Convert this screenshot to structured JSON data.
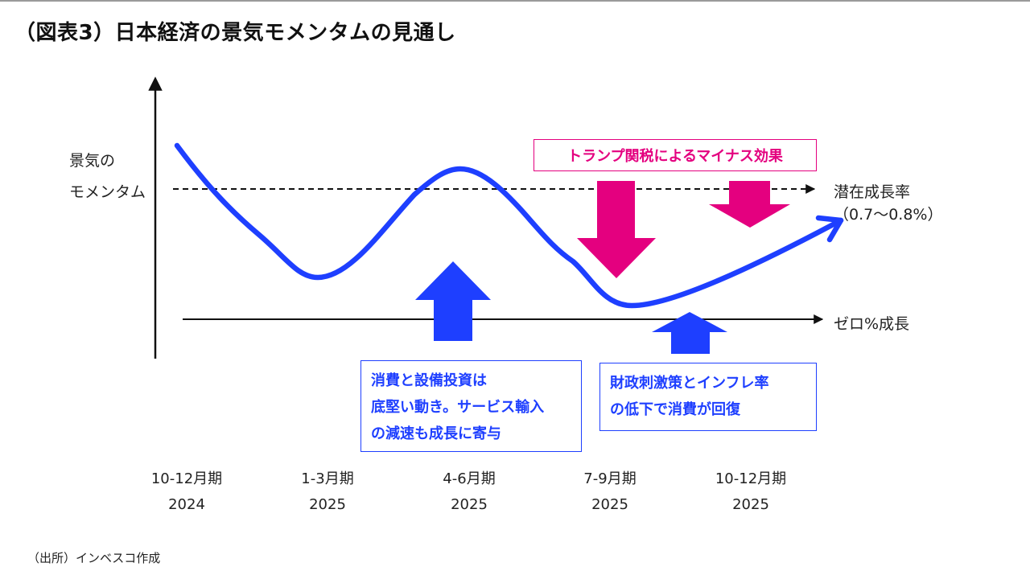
{
  "title": "（図表3）日本経済の景気モメンタムの見通し",
  "y_axis_label": [
    "景気の",
    "モメンタム"
  ],
  "reference_lines": {
    "potential_growth": [
      "潜在成長率",
      "（0.7～0.8%）"
    ],
    "zero_growth": "ゼロ%成長"
  },
  "annotations": {
    "tariff_effect": "トランプ関税によるマイナス効果",
    "consumption_box": [
      "消費と設備投資は",
      "底堅い動き。サービス輸入",
      "の減速も成長に寄与"
    ],
    "fiscal_box": [
      "財政刺激策とインフレ率",
      "の低下で消費が回復"
    ]
  },
  "x_ticks": [
    {
      "period": "10-12月期",
      "year": "2024"
    },
    {
      "period": "1-3月期",
      "year": "2025"
    },
    {
      "period": "4-6月期",
      "year": "2025"
    },
    {
      "period": "7-9月期",
      "year": "2025"
    },
    {
      "period": "10-12月期",
      "year": "2025"
    }
  ],
  "source": "（出所）インベスコ作成",
  "colors": {
    "curve": "#1e3fff",
    "positive_arrow": "#1e3fff",
    "negative_arrow": "#e4007f"
  }
}
